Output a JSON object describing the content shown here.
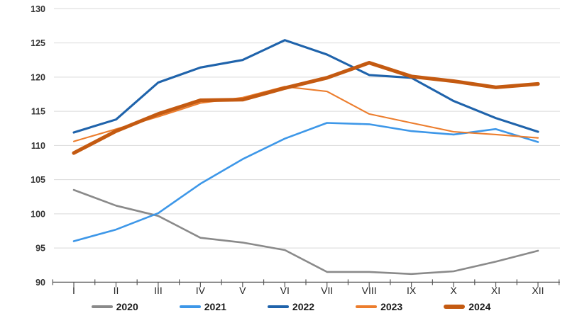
{
  "chart_data": {
    "type": "line",
    "title": "",
    "xlabel": "",
    "ylabel": "",
    "grid": true,
    "legend_position": "bottom",
    "ylim": [
      90,
      130
    ],
    "yticks": [
      130,
      125,
      120,
      115,
      110,
      105,
      100,
      95,
      90
    ],
    "categories": [
      "I",
      "II",
      "III",
      "IV",
      "V",
      "VI",
      "VII",
      "VIII",
      "IX",
      "X",
      "XI",
      "XII"
    ],
    "series": [
      {
        "name": "2020",
        "color": "#8a8a8a",
        "stroke_width": 2.6,
        "values": [
          103.5,
          101.2,
          99.7,
          96.5,
          95.8,
          94.7,
          91.5,
          91.5,
          91.2,
          91.6,
          93.0,
          94.6
        ]
      },
      {
        "name": "2021",
        "color": "#3d97e8",
        "stroke_width": 2.6,
        "values": [
          96.0,
          97.7,
          100.1,
          104.4,
          108.0,
          111.0,
          113.3,
          113.1,
          112.1,
          111.6,
          112.4,
          110.5
        ]
      },
      {
        "name": "2022",
        "color": "#1f63ab",
        "stroke_width": 3.1,
        "values": [
          111.9,
          113.8,
          119.2,
          121.4,
          122.5,
          125.4,
          123.3,
          120.3,
          119.9,
          116.5,
          114.0,
          112.0
        ]
      },
      {
        "name": "2023",
        "color": "#ec7d2d",
        "stroke_width": 2.1,
        "values": [
          110.6,
          112.4,
          114.2,
          116.2,
          117.0,
          118.6,
          117.9,
          114.6,
          113.3,
          112.0,
          111.6,
          111.1
        ]
      },
      {
        "name": "2024",
        "color": "#c45a11",
        "stroke_width": 5.2,
        "values": [
          108.9,
          112.1,
          114.6,
          116.6,
          116.7,
          118.4,
          119.9,
          122.1,
          120.1,
          119.4,
          118.5,
          119.0
        ]
      }
    ]
  },
  "style_colors": {
    "gridline": "#d9d9d9",
    "axis": "#595959",
    "y_tick_label": "#333333",
    "x_tick_label": "#262626",
    "legend_text": "#1a1a1a",
    "background": "#ffffff"
  }
}
